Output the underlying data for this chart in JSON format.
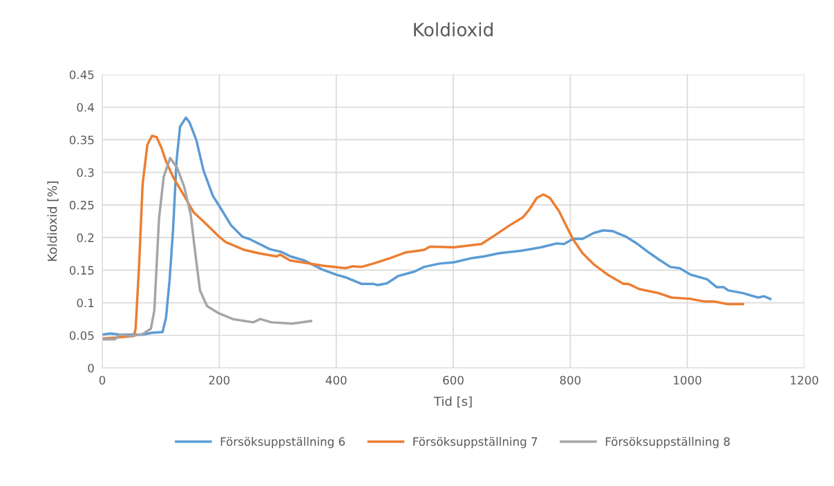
{
  "chart_data": {
    "type": "line",
    "title": "Koldioxid",
    "xlabel": "Tid [s]",
    "ylabel": "Koldioxid [%]",
    "xlim": [
      0,
      1200
    ],
    "xticks": [
      0,
      200,
      400,
      600,
      800,
      1000,
      1200
    ],
    "ylim": [
      0,
      0.45
    ],
    "yticks": [
      0,
      0.05,
      0.1,
      0.15,
      0.2,
      0.25,
      0.3,
      0.35,
      0.4,
      0.45
    ],
    "grid": true,
    "legend": "bottom",
    "marker": "none",
    "line_style": "solid",
    "series": [
      {
        "name": "Försöksuppställning 6",
        "color": "#5b9bd5",
        "x": [
          0,
          14,
          30,
          46,
          69,
          85,
          103,
          109,
          115,
          121,
          127,
          133,
          143,
          149,
          161,
          173,
          189,
          201,
          220,
          240,
          251,
          287,
          306,
          322,
          345,
          376,
          400,
          416,
          443,
          463,
          471,
          487,
          506,
          534,
          550,
          576,
          601,
          629,
          652,
          679,
          718,
          750,
          777,
          789,
          805,
          821,
          840,
          856,
          872,
          896,
          912,
          936,
          952,
          971,
          987,
          1006,
          1022,
          1034,
          1050,
          1062,
          1070,
          1094,
          1121,
          1131,
          1142
        ],
        "values": [
          0.051,
          0.053,
          0.051,
          0.051,
          0.051,
          0.054,
          0.055,
          0.077,
          0.134,
          0.212,
          0.318,
          0.37,
          0.384,
          0.377,
          0.349,
          0.303,
          0.264,
          0.247,
          0.219,
          0.201,
          0.198,
          0.182,
          0.178,
          0.171,
          0.165,
          0.151,
          0.143,
          0.139,
          0.129,
          0.129,
          0.127,
          0.13,
          0.141,
          0.148,
          0.155,
          0.16,
          0.162,
          0.168,
          0.171,
          0.176,
          0.18,
          0.185,
          0.191,
          0.19,
          0.198,
          0.198,
          0.207,
          0.211,
          0.21,
          0.201,
          0.192,
          0.176,
          0.166,
          0.155,
          0.153,
          0.143,
          0.139,
          0.136,
          0.124,
          0.124,
          0.119,
          0.115,
          0.108,
          0.11,
          0.106
        ]
      },
      {
        "name": "Försöksuppställning 7",
        "color": "#ed7d31",
        "x": [
          0,
          30,
          54,
          57,
          63,
          69,
          77,
          85,
          93,
          101,
          109,
          121,
          140,
          156,
          176,
          199,
          211,
          243,
          267,
          298,
          304,
          321,
          349,
          376,
          416,
          428,
          443,
          463,
          494,
          518,
          550,
          560,
          601,
          648,
          672,
          695,
          719,
          730,
          743,
          754,
          765,
          781,
          793,
          805,
          821,
          840,
          864,
          891,
          899,
          918,
          950,
          973,
          1005,
          1029,
          1045,
          1069,
          1095
        ],
        "values": [
          0.045,
          0.047,
          0.049,
          0.06,
          0.158,
          0.282,
          0.342,
          0.356,
          0.354,
          0.338,
          0.317,
          0.293,
          0.264,
          0.239,
          0.222,
          0.202,
          0.193,
          0.181,
          0.176,
          0.171,
          0.174,
          0.165,
          0.161,
          0.157,
          0.153,
          0.156,
          0.155,
          0.16,
          0.169,
          0.177,
          0.181,
          0.186,
          0.185,
          0.19,
          0.204,
          0.218,
          0.231,
          0.243,
          0.261,
          0.266,
          0.261,
          0.24,
          0.218,
          0.197,
          0.176,
          0.159,
          0.143,
          0.129,
          0.129,
          0.121,
          0.115,
          0.108,
          0.106,
          0.102,
          0.102,
          0.098,
          0.098
        ]
      },
      {
        "name": "Försöksuppställning 8",
        "color": "#a5a5a5",
        "x": [
          0,
          22,
          30,
          50,
          69,
          83,
          89,
          97,
          105,
          116,
          128,
          140,
          151,
          159,
          167,
          179,
          199,
          223,
          258,
          270,
          289,
          325,
          357
        ],
        "values": [
          0.044,
          0.044,
          0.051,
          0.049,
          0.052,
          0.06,
          0.088,
          0.229,
          0.293,
          0.322,
          0.307,
          0.278,
          0.236,
          0.176,
          0.119,
          0.095,
          0.084,
          0.075,
          0.07,
          0.075,
          0.07,
          0.068,
          0.072
        ]
      }
    ]
  }
}
